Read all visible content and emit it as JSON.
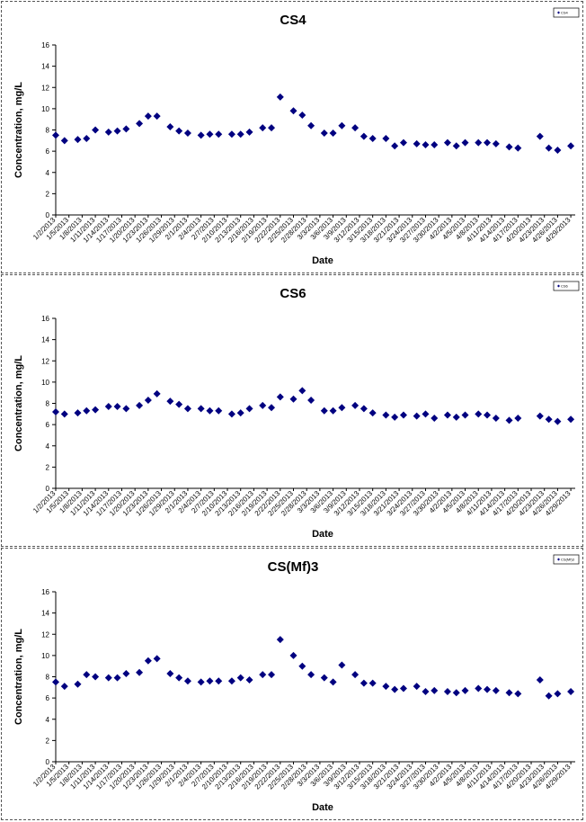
{
  "chart_data": [
    {
      "type": "scatter",
      "title": "CS4",
      "xlabel": "Date",
      "ylabel": "Concentration, mg/L",
      "ylim": [
        0,
        16
      ],
      "yticks": [
        0,
        2,
        4,
        6,
        8,
        10,
        12,
        14,
        16
      ],
      "x_tick_labels": [
        "1/2/2013",
        "1/5/2013",
        "1/8/2013",
        "1/11/2013",
        "1/14/2013",
        "1/17/2013",
        "1/20/2013",
        "1/23/2013",
        "1/26/2013",
        "1/29/2013",
        "2/1/2013",
        "2/4/2013",
        "2/7/2013",
        "2/10/2013",
        "2/13/2013",
        "2/16/2013",
        "2/19/2013",
        "2/22/2013",
        "2/25/2013",
        "2/28/2013",
        "3/3/2013",
        "3/6/2013",
        "3/9/2013",
        "3/12/2013",
        "3/15/2013",
        "3/18/2013",
        "3/21/2013",
        "3/24/2013",
        "3/27/2013",
        "3/30/2013",
        "4/2/2013",
        "4/5/2013",
        "4/8/2013",
        "4/11/2013",
        "4/14/2013",
        "4/17/2013",
        "4/20/2013",
        "4/23/2013",
        "4/26/2013",
        "4/29/2013"
      ],
      "grid": false,
      "legend_position": "top-right",
      "marker_color": "#000080",
      "series": [
        {
          "name": "CS4",
          "points": [
            [
              "2013-01-02",
              7.5
            ],
            [
              "2013-01-04",
              7.0
            ],
            [
              "2013-01-07",
              7.1
            ],
            [
              "2013-01-09",
              7.2
            ],
            [
              "2013-01-11",
              8.0
            ],
            [
              "2013-01-14",
              7.8
            ],
            [
              "2013-01-16",
              7.9
            ],
            [
              "2013-01-18",
              8.1
            ],
            [
              "2013-01-21",
              8.6
            ],
            [
              "2013-01-23",
              9.3
            ],
            [
              "2013-01-25",
              9.3
            ],
            [
              "2013-01-28",
              8.3
            ],
            [
              "2013-01-30",
              7.9
            ],
            [
              "2013-02-01",
              7.7
            ],
            [
              "2013-02-04",
              7.5
            ],
            [
              "2013-02-06",
              7.6
            ],
            [
              "2013-02-08",
              7.6
            ],
            [
              "2013-02-11",
              7.6
            ],
            [
              "2013-02-13",
              7.6
            ],
            [
              "2013-02-15",
              7.8
            ],
            [
              "2013-02-18",
              8.2
            ],
            [
              "2013-02-20",
              8.2
            ],
            [
              "2013-02-22",
              11.1
            ],
            [
              "2013-02-25",
              9.8
            ],
            [
              "2013-02-27",
              9.4
            ],
            [
              "2013-03-01",
              8.4
            ],
            [
              "2013-03-04",
              7.7
            ],
            [
              "2013-03-06",
              7.7
            ],
            [
              "2013-03-08",
              8.4
            ],
            [
              "2013-03-11",
              8.2
            ],
            [
              "2013-03-13",
              7.4
            ],
            [
              "2013-03-15",
              7.2
            ],
            [
              "2013-03-18",
              7.2
            ],
            [
              "2013-03-20",
              6.5
            ],
            [
              "2013-03-22",
              6.8
            ],
            [
              "2013-03-25",
              6.7
            ],
            [
              "2013-03-27",
              6.6
            ],
            [
              "2013-03-29",
              6.6
            ],
            [
              "2013-04-01",
              6.8
            ],
            [
              "2013-04-03",
              6.5
            ],
            [
              "2013-04-05",
              6.8
            ],
            [
              "2013-04-08",
              6.8
            ],
            [
              "2013-04-10",
              6.8
            ],
            [
              "2013-04-12",
              6.7
            ],
            [
              "2013-04-15",
              6.4
            ],
            [
              "2013-04-17",
              6.3
            ],
            [
              "2013-04-22",
              7.4
            ],
            [
              "2013-04-24",
              6.3
            ],
            [
              "2013-04-26",
              6.1
            ],
            [
              "2013-04-29",
              6.5
            ]
          ]
        }
      ]
    },
    {
      "type": "scatter",
      "title": "CS6",
      "xlabel": "Date",
      "ylabel": "Concentration, mg/L",
      "ylim": [
        0,
        16
      ],
      "yticks": [
        0,
        2,
        4,
        6,
        8,
        10,
        12,
        14,
        16
      ],
      "x_tick_labels": [
        "1/2/2013",
        "1/5/2013",
        "1/8/2013",
        "1/11/2013",
        "1/14/2013",
        "1/17/2013",
        "1/20/2013",
        "1/23/2013",
        "1/26/2013",
        "1/29/2013",
        "2/1/2013",
        "2/4/2013",
        "2/7/2013",
        "2/10/2013",
        "2/13/2013",
        "2/16/2013",
        "2/19/2013",
        "2/22/2013",
        "2/25/2013",
        "2/28/2013",
        "3/3/2013",
        "3/6/2013",
        "3/9/2013",
        "3/12/2013",
        "3/15/2013",
        "3/18/2013",
        "3/21/2013",
        "3/24/2013",
        "3/27/2013",
        "3/30/2013",
        "4/2/2013",
        "4/5/2013",
        "4/8/2013",
        "4/11/2013",
        "4/14/2013",
        "4/17/2013",
        "4/20/2013",
        "4/23/2013",
        "4/26/2013",
        "4/29/2013"
      ],
      "grid": false,
      "legend_position": "top-right",
      "marker_color": "#000080",
      "series": [
        {
          "name": "CS6",
          "points": [
            [
              "2013-01-02",
              7.2
            ],
            [
              "2013-01-04",
              7.0
            ],
            [
              "2013-01-07",
              7.1
            ],
            [
              "2013-01-09",
              7.3
            ],
            [
              "2013-01-11",
              7.4
            ],
            [
              "2013-01-14",
              7.7
            ],
            [
              "2013-01-16",
              7.7
            ],
            [
              "2013-01-18",
              7.5
            ],
            [
              "2013-01-21",
              7.8
            ],
            [
              "2013-01-23",
              8.3
            ],
            [
              "2013-01-25",
              8.9
            ],
            [
              "2013-01-28",
              8.2
            ],
            [
              "2013-01-30",
              7.9
            ],
            [
              "2013-02-01",
              7.5
            ],
            [
              "2013-02-04",
              7.5
            ],
            [
              "2013-02-06",
              7.3
            ],
            [
              "2013-02-08",
              7.3
            ],
            [
              "2013-02-11",
              7.0
            ],
            [
              "2013-02-13",
              7.1
            ],
            [
              "2013-02-15",
              7.5
            ],
            [
              "2013-02-18",
              7.8
            ],
            [
              "2013-02-20",
              7.6
            ],
            [
              "2013-02-22",
              8.6
            ],
            [
              "2013-02-25",
              8.4
            ],
            [
              "2013-02-27",
              9.2
            ],
            [
              "2013-03-01",
              8.3
            ],
            [
              "2013-03-04",
              7.3
            ],
            [
              "2013-03-06",
              7.3
            ],
            [
              "2013-03-08",
              7.6
            ],
            [
              "2013-03-11",
              7.8
            ],
            [
              "2013-03-13",
              7.5
            ],
            [
              "2013-03-15",
              7.1
            ],
            [
              "2013-03-18",
              6.9
            ],
            [
              "2013-03-20",
              6.7
            ],
            [
              "2013-03-22",
              6.9
            ],
            [
              "2013-03-25",
              6.8
            ],
            [
              "2013-03-27",
              7.0
            ],
            [
              "2013-03-29",
              6.6
            ],
            [
              "2013-04-01",
              6.9
            ],
            [
              "2013-04-03",
              6.7
            ],
            [
              "2013-04-05",
              6.9
            ],
            [
              "2013-04-08",
              7.0
            ],
            [
              "2013-04-10",
              6.9
            ],
            [
              "2013-04-12",
              6.6
            ],
            [
              "2013-04-15",
              6.4
            ],
            [
              "2013-04-17",
              6.6
            ],
            [
              "2013-04-22",
              6.8
            ],
            [
              "2013-04-24",
              6.5
            ],
            [
              "2013-04-26",
              6.3
            ],
            [
              "2013-04-29",
              6.5
            ]
          ]
        }
      ]
    },
    {
      "type": "scatter",
      "title": "CS(Mf)3",
      "xlabel": "Date",
      "ylabel": "Concentration, mg/L",
      "ylim": [
        0,
        16
      ],
      "yticks": [
        0,
        2,
        4,
        6,
        8,
        10,
        12,
        14,
        16
      ],
      "x_tick_labels": [
        "1/2/2013",
        "1/5/2013",
        "1/8/2013",
        "1/11/2013",
        "1/14/2013",
        "1/17/2013",
        "1/20/2013",
        "1/23/2013",
        "1/26/2013",
        "1/29/2013",
        "2/1/2013",
        "2/4/2013",
        "2/7/2013",
        "2/10/2013",
        "2/13/2013",
        "2/16/2013",
        "2/19/2013",
        "2/22/2013",
        "2/25/2013",
        "2/28/2013",
        "3/3/2013",
        "3/6/2013",
        "3/9/2013",
        "3/12/2013",
        "3/15/2013",
        "3/18/2013",
        "3/21/2013",
        "3/24/2013",
        "3/27/2013",
        "3/30/2013",
        "4/2/2013",
        "4/5/2013",
        "4/8/2013",
        "4/11/2013",
        "4/14/2013",
        "4/17/2013",
        "4/20/2013",
        "4/23/2013",
        "4/26/2013",
        "4/29/2013"
      ],
      "grid": false,
      "legend_position": "top-right",
      "marker_color": "#000080",
      "series": [
        {
          "name": "CS(Mf)3",
          "points": [
            [
              "2013-01-02",
              7.5
            ],
            [
              "2013-01-04",
              7.1
            ],
            [
              "2013-01-07",
              7.3
            ],
            [
              "2013-01-09",
              8.2
            ],
            [
              "2013-01-11",
              8.0
            ],
            [
              "2013-01-14",
              7.9
            ],
            [
              "2013-01-16",
              7.9
            ],
            [
              "2013-01-18",
              8.3
            ],
            [
              "2013-01-21",
              8.4
            ],
            [
              "2013-01-23",
              9.5
            ],
            [
              "2013-01-25",
              9.7
            ],
            [
              "2013-01-28",
              8.3
            ],
            [
              "2013-01-30",
              7.9
            ],
            [
              "2013-02-01",
              7.6
            ],
            [
              "2013-02-04",
              7.5
            ],
            [
              "2013-02-06",
              7.6
            ],
            [
              "2013-02-08",
              7.6
            ],
            [
              "2013-02-11",
              7.6
            ],
            [
              "2013-02-13",
              7.9
            ],
            [
              "2013-02-15",
              7.7
            ],
            [
              "2013-02-18",
              8.2
            ],
            [
              "2013-02-20",
              8.2
            ],
            [
              "2013-02-22",
              11.5
            ],
            [
              "2013-02-25",
              10.0
            ],
            [
              "2013-02-27",
              9.0
            ],
            [
              "2013-03-01",
              8.2
            ],
            [
              "2013-03-04",
              7.9
            ],
            [
              "2013-03-06",
              7.5
            ],
            [
              "2013-03-08",
              9.1
            ],
            [
              "2013-03-11",
              8.2
            ],
            [
              "2013-03-13",
              7.4
            ],
            [
              "2013-03-15",
              7.4
            ],
            [
              "2013-03-18",
              7.1
            ],
            [
              "2013-03-20",
              6.8
            ],
            [
              "2013-03-22",
              6.9
            ],
            [
              "2013-03-25",
              7.1
            ],
            [
              "2013-03-27",
              6.6
            ],
            [
              "2013-03-29",
              6.7
            ],
            [
              "2013-04-01",
              6.6
            ],
            [
              "2013-04-03",
              6.5
            ],
            [
              "2013-04-05",
              6.7
            ],
            [
              "2013-04-08",
              6.9
            ],
            [
              "2013-04-10",
              6.8
            ],
            [
              "2013-04-12",
              6.7
            ],
            [
              "2013-04-15",
              6.5
            ],
            [
              "2013-04-17",
              6.4
            ],
            [
              "2013-04-22",
              7.7
            ],
            [
              "2013-04-24",
              6.2
            ],
            [
              "2013-04-26",
              6.4
            ],
            [
              "2013-04-29",
              6.6
            ]
          ]
        }
      ]
    }
  ]
}
